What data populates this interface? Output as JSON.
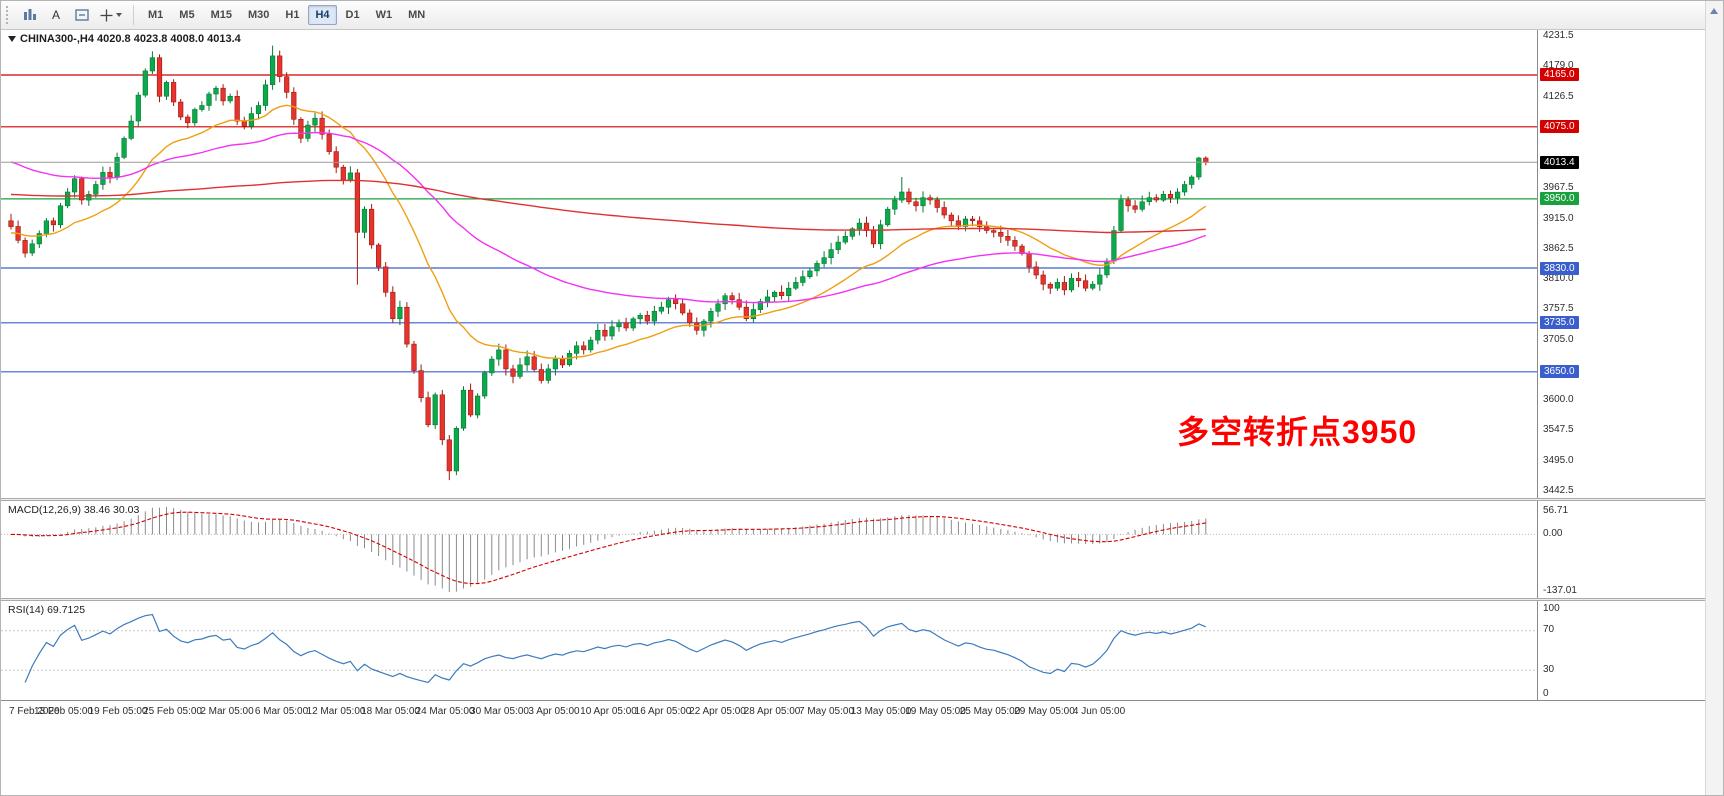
{
  "toolbar": {
    "tools": [
      {
        "name": "chart-bars-icon"
      },
      {
        "name": "text-tool",
        "label": "A"
      },
      {
        "name": "label-tool"
      },
      {
        "name": "crosshair-tool"
      }
    ],
    "timeframes": [
      "M1",
      "M5",
      "M15",
      "M30",
      "H1",
      "H4",
      "D1",
      "W1",
      "MN"
    ],
    "active_timeframe": "H4"
  },
  "chart": {
    "title": "CHINA300-,H4 4020.8 4023.8 4008.0 4013.4",
    "symbol": "CHINA300-",
    "period": "H4",
    "annotation": "多空转折点3950",
    "annotation_color": "#FF0000"
  },
  "chart_data": {
    "type": "candlestick",
    "title": "CHINA300- H4",
    "ylim": [
      3431,
      4243
    ],
    "first_open": 3912,
    "closes": [
      3902,
      3878,
      3856,
      3872,
      3890,
      3912,
      3905,
      3938,
      3962,
      3985,
      3948,
      3958,
      3975,
      3996,
      3988,
      4022,
      4055,
      4085,
      4130,
      4172,
      4195,
      4128,
      4152,
      4118,
      4092,
      4082,
      4105,
      4112,
      4132,
      4142,
      4120,
      4128,
      4085,
      4076,
      4098,
      4112,
      4148,
      4198,
      4162,
      4135,
      4088,
      4055,
      4078,
      4090,
      4062,
      4032,
      4005,
      3982,
      3995,
      3892,
      3932,
      3870,
      3832,
      3788,
      3742,
      3762,
      3698,
      3652,
      3605,
      3558,
      3610,
      3532,
      3478,
      3552,
      3618,
      3575,
      3608,
      3648,
      3672,
      3688,
      3655,
      3642,
      3662,
      3676,
      3654,
      3635,
      3655,
      3672,
      3662,
      3682,
      3695,
      3688,
      3705,
      3722,
      3712,
      3728,
      3735,
      3726,
      3742,
      3748,
      3738,
      3755,
      3762,
      3775,
      3768,
      3752,
      3735,
      3722,
      3738,
      3755,
      3768,
      3782,
      3775,
      3762,
      3742,
      3758,
      3772,
      3780,
      3788,
      3782,
      3795,
      3805,
      3815,
      3825,
      3838,
      3848,
      3862,
      3875,
      3885,
      3898,
      3908,
      3895,
      3872,
      3905,
      3932,
      3948,
      3962,
      3945,
      3938,
      3952,
      3948,
      3935,
      3922,
      3912,
      3902,
      3915,
      3912,
      3902,
      3895,
      3892,
      3885,
      3878,
      3868,
      3855,
      3832,
      3818,
      3802,
      3795,
      3805,
      3792,
      3812,
      3808,
      3795,
      3802,
      3818,
      3842,
      3895,
      3948,
      3938,
      3932,
      3945,
      3952,
      3948,
      3958,
      3952,
      3962,
      3975,
      3988,
      4021,
      4013.4
    ],
    "wick_overrides": {
      "20": {
        "high": 4206
      },
      "37": {
        "high": 4216
      },
      "49": {
        "low": 3801
      },
      "62": {
        "low": 3462
      },
      "126": {
        "high": 3988
      },
      "168": {
        "high": 4023
      },
      "169": {
        "high": 4023.8,
        "low": 4008
      }
    },
    "levels": [
      {
        "value": 4165.0,
        "label": "4165.0",
        "color": "#d40000"
      },
      {
        "value": 4075.0,
        "label": "4075.0",
        "color": "#d40000"
      },
      {
        "value": 3950.0,
        "label": "3950.0",
        "color": "#18a13c"
      },
      {
        "value": 3830.0,
        "label": "3830.0",
        "color": "#3a5fcd"
      },
      {
        "value": 3735.0,
        "label": "3735.0",
        "color": "#3a5fcd"
      },
      {
        "value": 3650.0,
        "label": "3650.0",
        "color": "#3a5fcd"
      }
    ],
    "current_price": {
      "value": 4013.4,
      "label": "4013.4",
      "badge_color": "#000000"
    },
    "price_ticks": [
      4231.5,
      4179.0,
      4126.5,
      3967.5,
      3915.0,
      3862.5,
      3810.0,
      3757.5,
      3705.0,
      3600.0,
      3547.5,
      3495.0,
      3442.5
    ],
    "moving_averages": [
      {
        "name": "ma-fast",
        "period": 20,
        "seed": 3890,
        "color": "#ef9f13"
      },
      {
        "name": "ma-medium",
        "period": 60,
        "seed": 4018,
        "color": "#f431f4"
      },
      {
        "name": "ma-slow",
        "period": 330,
        "seed": 3958,
        "color": "#e03131"
      }
    ],
    "time_labels": [
      "7 Feb 2020",
      "13 Feb 05:00",
      "19 Feb 05:00",
      "25 Feb 05:00",
      "2 Mar 05:00",
      "6 Mar 05:00",
      "12 Mar 05:00",
      "18 Mar 05:00",
      "24 Mar 05:00",
      "30 Mar 05:00",
      "3 Apr 05:00",
      "10 Apr 05:00",
      "16 Apr 05:00",
      "22 Apr 05:00",
      "28 Apr 05:00",
      "7 May 05:00",
      "13 May 05:00",
      "19 May 05:00",
      "25 May 05:00",
      "29 May 05:00",
      "4 Jun 05:00"
    ],
    "indicators": [
      {
        "name": "MACD",
        "label": "MACD(12,26,9) 38.46 30.03",
        "params": [
          12,
          26,
          9
        ],
        "values": [
          38.46,
          30.03
        ],
        "scale_labels": [
          "56.71",
          "0.00",
          "-137.01"
        ],
        "histogram_color": "#8a8a8a",
        "signal_color": "#d40000"
      },
      {
        "name": "RSI",
        "label": "RSI(14) 69.7125",
        "params": [
          14
        ],
        "value": 69.7125,
        "scale_labels": [
          "100",
          "70",
          "30",
          "0"
        ],
        "levels": [
          70,
          30
        ],
        "line_color": "#3e7bbe"
      }
    ],
    "candle_up_color": "#0ba94c",
    "candle_down_color": "#e5332d"
  }
}
